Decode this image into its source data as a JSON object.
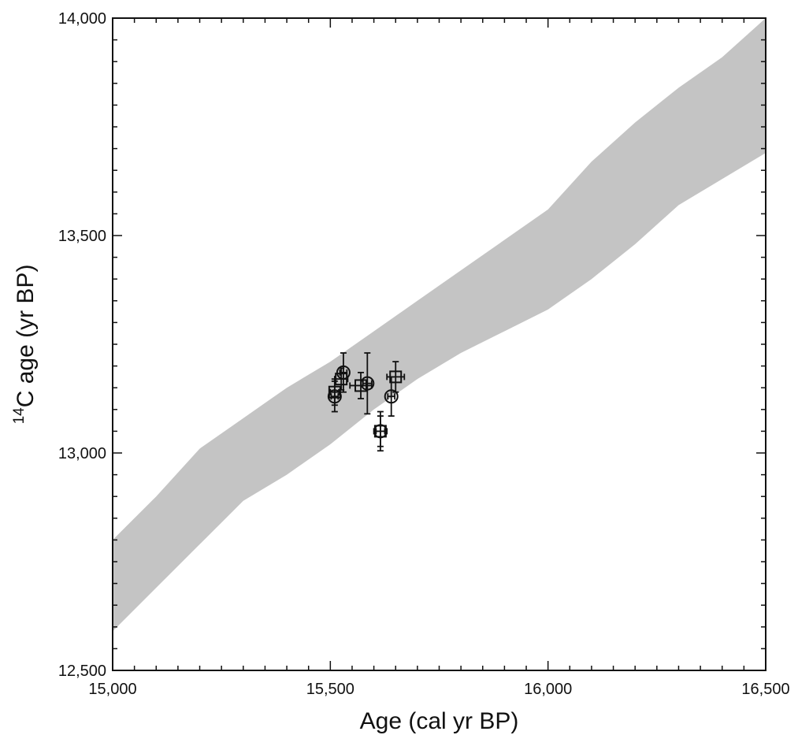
{
  "chart_data": {
    "type": "scatter",
    "title": "",
    "xlabel": "Age (cal yr BP)",
    "ylabel": {
      "superscript": "14",
      "main": "C age (yr BP)"
    },
    "xlim": [
      15000,
      16500
    ],
    "ylim": [
      12500,
      14000
    ],
    "x_ticks": [
      {
        "value": 15000,
        "label": "15,000"
      },
      {
        "value": 15500,
        "label": "15,500"
      },
      {
        "value": 16000,
        "label": "16,000"
      },
      {
        "value": 16500,
        "label": "16,500"
      }
    ],
    "y_ticks": [
      {
        "value": 12500,
        "label": "12,500"
      },
      {
        "value": 13000,
        "label": "13,000"
      },
      {
        "value": 13500,
        "label": "13,500"
      },
      {
        "value": 14000,
        "label": "14,000"
      }
    ],
    "minor_tick_step_x": 50,
    "minor_tick_step_y": 50,
    "grid": false,
    "legend": "none",
    "calibration_band": {
      "color": "#c4c4c4",
      "upper": [
        [
          15000,
          12800
        ],
        [
          15100,
          12900
        ],
        [
          15200,
          13010
        ],
        [
          15300,
          13080
        ],
        [
          15400,
          13150
        ],
        [
          15500,
          13210
        ],
        [
          15600,
          13280
        ],
        [
          15700,
          13350
        ],
        [
          15800,
          13420
        ],
        [
          15900,
          13490
        ],
        [
          16000,
          13560
        ],
        [
          16100,
          13670
        ],
        [
          16200,
          13760
        ],
        [
          16300,
          13840
        ],
        [
          16400,
          13910
        ],
        [
          16500,
          14000
        ]
      ],
      "lower": [
        [
          15000,
          12590
        ],
        [
          15100,
          12690
        ],
        [
          15200,
          12790
        ],
        [
          15300,
          12890
        ],
        [
          15400,
          12950
        ],
        [
          15500,
          13020
        ],
        [
          15600,
          13100
        ],
        [
          15700,
          13170
        ],
        [
          15800,
          13230
        ],
        [
          15900,
          13280
        ],
        [
          16000,
          13330
        ],
        [
          16100,
          13400
        ],
        [
          16200,
          13480
        ],
        [
          16300,
          13570
        ],
        [
          16400,
          13630
        ],
        [
          16500,
          13690
        ]
      ]
    },
    "series": [
      {
        "marker": "circle",
        "points": [
          {
            "x": 15510,
            "y": 13130,
            "xerr": 8,
            "yerr": 35
          },
          {
            "x": 15530,
            "y": 13185,
            "xerr": 8,
            "yerr": 45
          },
          {
            "x": 15585,
            "y": 13160,
            "xerr": 10,
            "yerr": 70
          },
          {
            "x": 15615,
            "y": 13050,
            "xerr": 10,
            "yerr": 45
          },
          {
            "x": 15640,
            "y": 13130,
            "xerr": 8,
            "yerr": 45
          }
        ]
      },
      {
        "marker": "square",
        "points": [
          {
            "x": 15510,
            "y": 13140,
            "xerr": 10,
            "yerr": 30
          },
          {
            "x": 15525,
            "y": 13170,
            "xerr": 15,
            "yerr": 25
          },
          {
            "x": 15570,
            "y": 13155,
            "xerr": 25,
            "yerr": 30
          },
          {
            "x": 15615,
            "y": 13050,
            "xerr": 15,
            "yerr": 35
          },
          {
            "x": 15650,
            "y": 13175,
            "xerr": 20,
            "yerr": 35
          }
        ]
      }
    ]
  }
}
